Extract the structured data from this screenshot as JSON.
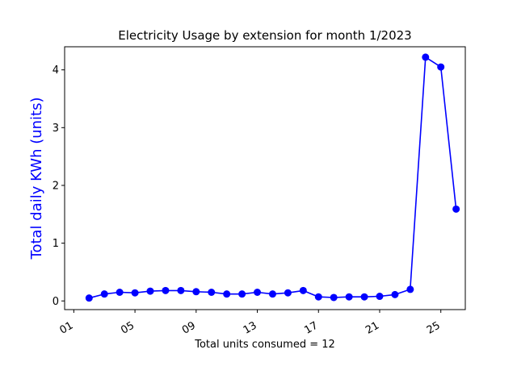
{
  "chart_data": {
    "type": "line",
    "title": "Electricity Usage by extension for month 1/2023",
    "xlabel": "Total units consumed = 12",
    "ylabel": "Total daily KWh (units)",
    "x_tick_labels": [
      "01",
      "05",
      "09",
      "13",
      "17",
      "21",
      "25"
    ],
    "x_tick_values": [
      1,
      5,
      9,
      13,
      17,
      21,
      25
    ],
    "y_ticks": [
      0,
      1,
      2,
      3,
      4
    ],
    "xlim": [
      0.4,
      26.6
    ],
    "ylim": [
      -0.15,
      4.4
    ],
    "grid": false,
    "series": [
      {
        "color": "#0000ff",
        "marker": "circle",
        "x": [
          2,
          3,
          4,
          5,
          6,
          7,
          8,
          9,
          10,
          11,
          12,
          13,
          14,
          15,
          16,
          17,
          18,
          19,
          20,
          21,
          22,
          23,
          24,
          25,
          26
        ],
        "values": [
          0.05,
          0.12,
          0.15,
          0.14,
          0.17,
          0.18,
          0.18,
          0.16,
          0.15,
          0.12,
          0.12,
          0.15,
          0.12,
          0.14,
          0.18,
          0.07,
          0.06,
          0.07,
          0.07,
          0.08,
          0.11,
          0.2,
          4.22,
          4.05,
          1.59
        ]
      }
    ],
    "colors": {
      "line": "#0000ff",
      "ylabel": "#0000ff",
      "axes": "#000000"
    }
  }
}
